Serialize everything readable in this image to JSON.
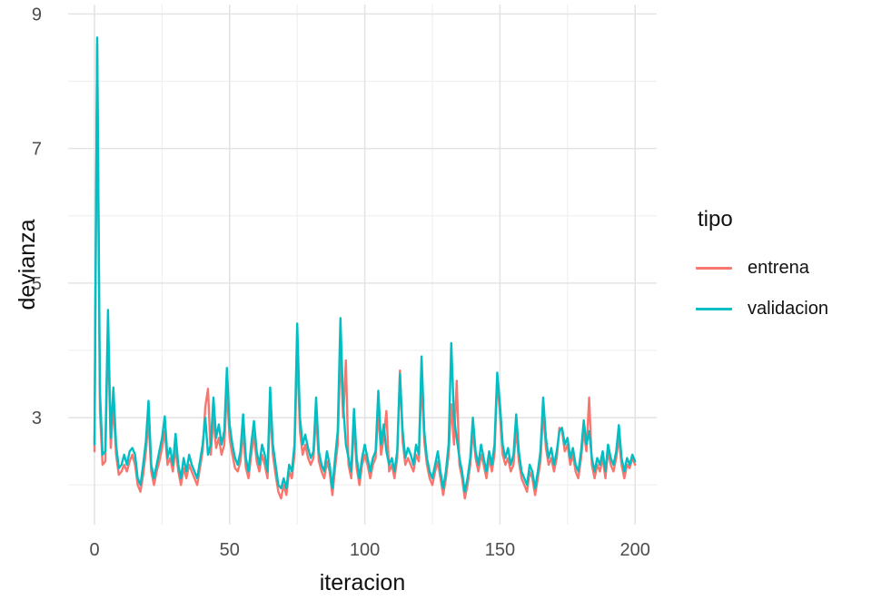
{
  "chart_data": {
    "type": "line",
    "title": "",
    "xlabel": "iteracion",
    "ylabel": "devianza",
    "grid": "on",
    "x_domain": [
      -9.75,
      208
    ],
    "y_domain": [
      1.41,
      9.14
    ],
    "x_ticks": [
      0,
      50,
      100,
      150,
      200
    ],
    "x_minor_ticks": [
      25,
      75,
      125,
      175
    ],
    "y_ticks": [
      3,
      5,
      7,
      9
    ],
    "y_minor_ticks": [
      2,
      4,
      6,
      8
    ],
    "x_start": 0,
    "x_step": 1,
    "legend": {
      "title": "tipo",
      "position": "right",
      "entries": [
        {
          "label": "entrena",
          "color": "#F8766D"
        },
        {
          "label": "validacion",
          "color": "#00BFC4"
        }
      ]
    },
    "series": [
      {
        "name": "entrena",
        "color": "#F8766D",
        "values": [
          2.5,
          8.55,
          3.1,
          2.3,
          2.35,
          4.3,
          2.55,
          3.2,
          2.45,
          2.15,
          2.2,
          2.3,
          2.2,
          2.35,
          2.45,
          2.3,
          2.0,
          1.9,
          2.15,
          2.5,
          2.95,
          2.2,
          2.0,
          2.2,
          2.35,
          2.55,
          2.8,
          2.3,
          2.4,
          2.2,
          2.55,
          2.2,
          2.0,
          2.25,
          2.1,
          2.3,
          2.2,
          2.1,
          2.0,
          2.25,
          2.5,
          3.16,
          3.43,
          2.45,
          3.0,
          2.55,
          2.7,
          2.45,
          2.6,
          3.4,
          2.7,
          2.45,
          2.25,
          2.2,
          2.35,
          2.8,
          2.25,
          2.1,
          2.45,
          2.75,
          2.35,
          2.2,
          2.45,
          2.3,
          2.1,
          3.15,
          2.45,
          2.15,
          1.9,
          1.8,
          2.0,
          1.85,
          2.2,
          2.1,
          2.45,
          4.05,
          2.8,
          2.45,
          2.6,
          2.4,
          2.3,
          2.4,
          3.05,
          2.35,
          2.2,
          2.1,
          2.35,
          2.2,
          1.85,
          2.25,
          2.6,
          4.0,
          3.0,
          3.85,
          2.3,
          2.1,
          2.9,
          2.25,
          2.0,
          2.3,
          2.45,
          2.3,
          2.1,
          2.3,
          2.4,
          3.1,
          2.45,
          2.7,
          3.1,
          2.2,
          2.3,
          2.1,
          2.4,
          3.7,
          2.65,
          2.3,
          2.4,
          2.3,
          2.2,
          2.45,
          2.35,
          3.6,
          2.65,
          2.3,
          2.1,
          2.0,
          2.2,
          2.35,
          2.1,
          1.85,
          2.1,
          2.45,
          3.2,
          2.6,
          3.55,
          2.3,
          2.1,
          1.8,
          2.0,
          2.3,
          2.8,
          2.4,
          2.2,
          2.45,
          2.3,
          2.1,
          2.4,
          2.2,
          2.45,
          3.58,
          3.05,
          2.45,
          2.3,
          2.4,
          2.2,
          2.3,
          2.85,
          2.35,
          2.1,
          2.0,
          1.9,
          2.2,
          2.1,
          1.85,
          2.1,
          2.35,
          3.1,
          2.55,
          2.3,
          2.4,
          2.2,
          2.4,
          2.85,
          2.8,
          2.5,
          2.6,
          2.3,
          2.45,
          2.2,
          2.1,
          2.4,
          2.8,
          2.5,
          3.3,
          2.3,
          2.1,
          2.3,
          2.2,
          2.4,
          2.1,
          2.5,
          2.3,
          2.2,
          2.4,
          2.7,
          2.3,
          2.1,
          2.3,
          2.25,
          2.4,
          2.3
        ]
      },
      {
        "name": "validacion",
        "color": "#00BFC4",
        "values": [
          2.6,
          8.65,
          3.4,
          2.45,
          2.5,
          4.6,
          2.7,
          3.45,
          2.6,
          2.25,
          2.3,
          2.45,
          2.3,
          2.5,
          2.55,
          2.45,
          2.1,
          2.0,
          2.3,
          2.65,
          3.25,
          2.3,
          2.1,
          2.3,
          2.5,
          2.7,
          3.02,
          2.4,
          2.55,
          2.3,
          2.76,
          2.3,
          2.1,
          2.4,
          2.2,
          2.45,
          2.3,
          2.2,
          2.1,
          2.35,
          2.6,
          3.0,
          2.45,
          2.6,
          3.3,
          2.7,
          2.9,
          2.6,
          2.8,
          3.74,
          2.9,
          2.6,
          2.4,
          2.3,
          2.5,
          3.05,
          2.4,
          2.2,
          2.6,
          2.95,
          2.5,
          2.3,
          2.6,
          2.45,
          2.2,
          3.45,
          2.6,
          2.3,
          2.0,
          1.95,
          2.1,
          1.95,
          2.3,
          2.2,
          2.6,
          4.4,
          3.0,
          2.6,
          2.75,
          2.55,
          2.4,
          2.5,
          3.3,
          2.5,
          2.3,
          2.2,
          2.5,
          2.3,
          1.95,
          2.4,
          2.8,
          4.48,
          3.2,
          2.6,
          2.4,
          2.2,
          3.13,
          2.4,
          2.1,
          2.4,
          2.6,
          2.4,
          2.2,
          2.4,
          2.5,
          3.4,
          2.6,
          2.9,
          2.5,
          2.3,
          2.4,
          2.2,
          2.5,
          3.65,
          2.8,
          2.4,
          2.55,
          2.45,
          2.3,
          2.6,
          2.45,
          3.91,
          2.8,
          2.4,
          2.2,
          2.1,
          2.3,
          2.5,
          2.2,
          1.95,
          2.2,
          2.6,
          4.11,
          3.0,
          2.7,
          2.4,
          2.2,
          1.9,
          2.1,
          2.4,
          3.0,
          2.5,
          2.3,
          2.6,
          2.4,
          2.2,
          2.5,
          2.3,
          2.6,
          3.67,
          3.2,
          2.6,
          2.4,
          2.55,
          2.3,
          2.45,
          3.05,
          2.5,
          2.2,
          2.1,
          2.0,
          2.3,
          2.2,
          1.95,
          2.2,
          2.5,
          3.3,
          2.7,
          2.4,
          2.55,
          2.3,
          2.5,
          2.8,
          2.85,
          2.6,
          2.7,
          2.4,
          2.55,
          2.3,
          2.2,
          2.5,
          2.96,
          2.6,
          2.8,
          2.4,
          2.2,
          2.4,
          2.3,
          2.5,
          2.2,
          2.6,
          2.4,
          2.3,
          2.5,
          2.89,
          2.4,
          2.2,
          2.4,
          2.3,
          2.45,
          2.35
        ]
      }
    ]
  }
}
